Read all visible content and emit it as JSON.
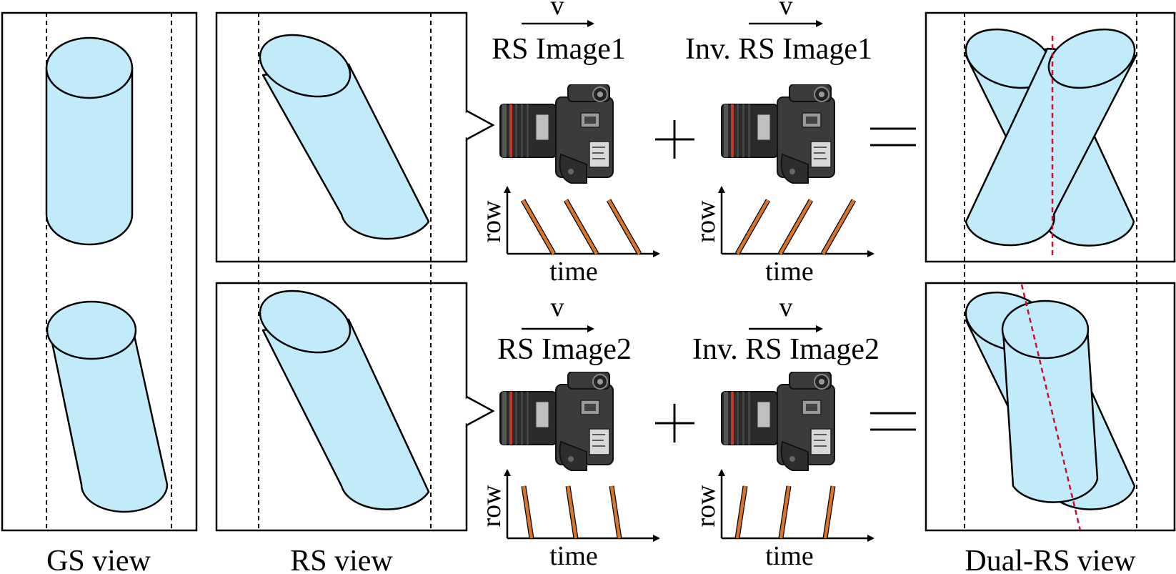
{
  "captions": {
    "gs_view": "GS view",
    "rs_view": "RS view",
    "dual_rs_view": "Dual-RS view"
  },
  "rows": [
    {
      "velocity": "v",
      "rs_image": "RS Image1",
      "inv_rs_image": "Inv. RS Image1"
    },
    {
      "velocity": "v",
      "rs_image": "RS Image2",
      "inv_rs_image": "Inv. RS Image2"
    }
  ],
  "plot_axes": {
    "y": "row",
    "x": "time"
  },
  "operators": {
    "plus": "+",
    "equals": "="
  },
  "colors": {
    "cylinder_fill": "#c2ebfa",
    "scanline": "#d9742b",
    "dual_rs_dashed": "#c8102e"
  },
  "icons": {
    "camera": "camera-icon",
    "velocity_arrow": "arrow-right-icon"
  }
}
